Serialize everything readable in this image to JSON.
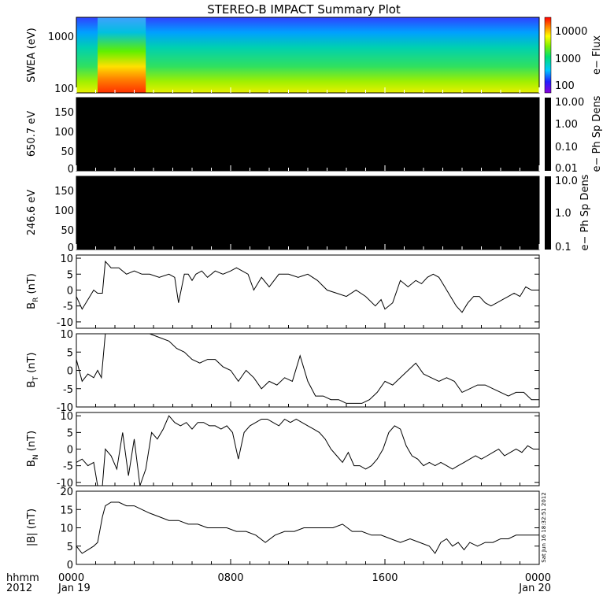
{
  "title": "STEREO-B IMPACT Summary Plot",
  "footer": {
    "label_line1": "hhmm",
    "label_line2": "2012",
    "x_ticks": [
      "0000",
      "0800",
      "1600",
      "0000"
    ],
    "x_dates": [
      "Jan 19",
      "",
      "",
      "Jan 20"
    ]
  },
  "timestamp": "Sat Jun 16 18:32:51 2012",
  "chart_data": [
    {
      "type": "heatmap",
      "ylabel": "SWEA (eV)",
      "yscale": "log",
      "ylim": [
        95,
        2000
      ],
      "y_ticks": [
        "100",
        "1000"
      ],
      "colorbar": {
        "label": "e− Flux",
        "ticks": [
          "100",
          "1000",
          "10000"
        ],
        "scale": "log",
        "range": [
          60,
          20000
        ]
      },
      "xlim_hours": [
        0,
        24
      ],
      "description_colors": "flux increases toward lower energies; strong enhancement (red/orange) below ~200 eV near 01:00-04:00",
      "enhancement_start_hour": 1.1,
      "enhancement_end_hour": 3.6
    },
    {
      "type": "heatmap",
      "ylabel": "650.7 eV",
      "ylim": [
        0,
        180
      ],
      "y_ticks": [
        "0",
        "50",
        "100",
        "150"
      ],
      "colorbar": {
        "label": "e− Ph Sp Dens",
        "ticks": [
          "0.01",
          "0.10",
          "1.00",
          "10.00"
        ],
        "scale": "log"
      },
      "fill": "#000000"
    },
    {
      "type": "heatmap",
      "ylabel": "246.6 eV",
      "ylim": [
        0,
        180
      ],
      "y_ticks": [
        "0",
        "50",
        "100",
        "150"
      ],
      "colorbar": {
        "label": "e− Ph Sp Dens",
        "ticks": [
          "0.1",
          "1.0",
          "10.0"
        ],
        "scale": "log"
      },
      "fill": "#000000"
    },
    {
      "type": "line",
      "ylabel_main": "B",
      "ylabel_sub": "R",
      "ylabel_unit": " (nT)",
      "ylim": [
        -12,
        11
      ],
      "y_ticks": [
        -10,
        -5,
        0,
        5,
        10
      ],
      "x_hours": [
        0,
        0.3,
        0.6,
        0.9,
        1.1,
        1.35,
        1.5,
        1.8,
        2.2,
        2.6,
        3.0,
        3.4,
        3.8,
        4.3,
        4.8,
        5.1,
        5.3,
        5.6,
        5.8,
        6.0,
        6.2,
        6.5,
        6.8,
        7.2,
        7.6,
        8.0,
        8.3,
        8.6,
        8.9,
        9.2,
        9.6,
        10.0,
        10.5,
        11.0,
        11.5,
        12.0,
        12.5,
        13.0,
        13.5,
        14.0,
        14.5,
        15.0,
        15.5,
        15.8,
        16.0,
        16.4,
        16.8,
        17.2,
        17.6,
        17.9,
        18.2,
        18.5,
        18.8,
        19.1,
        19.4,
        19.7,
        20.0,
        20.3,
        20.6,
        20.9,
        21.2,
        21.5,
        21.8,
        22.1,
        22.4,
        22.7,
        23.0,
        23.3,
        23.6,
        24.0
      ],
      "y": [
        -2,
        -6,
        -3,
        0,
        -1,
        -1,
        9,
        7,
        7,
        5,
        6,
        5,
        5,
        4,
        5,
        4,
        -4,
        5,
        5,
        3,
        5,
        6,
        4,
        6,
        5,
        6,
        7,
        6,
        5,
        0,
        4,
        1,
        5,
        5,
        4,
        5,
        3,
        0,
        -1,
        -2,
        0,
        -2,
        -5,
        -3,
        -6,
        -4,
        3,
        1,
        3,
        2,
        4,
        5,
        4,
        1,
        -2,
        -5,
        -7,
        -4,
        -2,
        -2,
        -4,
        -5,
        -4,
        -3,
        -2,
        -1,
        -2,
        1,
        0,
        0
      ]
    },
    {
      "type": "line",
      "ylabel_main": "B",
      "ylabel_sub": "T",
      "ylabel_unit": " (nT)",
      "ylim": [
        -10,
        10
      ],
      "y_ticks": [
        -10,
        -5,
        0,
        5,
        10
      ],
      "x_hours": [
        0,
        0.3,
        0.6,
        0.9,
        1.1,
        1.3,
        1.5,
        1.8,
        2.2,
        2.6,
        3.0,
        3.4,
        3.8,
        4.3,
        4.8,
        5.2,
        5.6,
        6.0,
        6.4,
        6.8,
        7.2,
        7.6,
        8.0,
        8.4,
        8.8,
        9.2,
        9.6,
        10.0,
        10.4,
        10.8,
        11.2,
        11.6,
        12.0,
        12.4,
        12.8,
        13.2,
        13.6,
        14.0,
        14.4,
        14.8,
        15.2,
        15.6,
        16.0,
        16.4,
        16.8,
        17.2,
        17.6,
        18.0,
        18.4,
        18.8,
        19.2,
        19.6,
        20.0,
        20.4,
        20.8,
        21.2,
        21.6,
        22.0,
        22.4,
        22.8,
        23.2,
        23.6,
        24.0
      ],
      "y": [
        3,
        -3,
        -1,
        -2,
        0,
        -2,
        11,
        10,
        11,
        11,
        10,
        10,
        11,
        9,
        8,
        6,
        5,
        3,
        2,
        3,
        3,
        1,
        0,
        -3,
        0,
        -2,
        -5,
        -3,
        -4,
        -2,
        -3,
        4,
        -3,
        -7,
        -7,
        -8,
        -8,
        -9,
        -9,
        -9,
        -8,
        -6,
        -3,
        -4,
        -2,
        0,
        2,
        -1,
        -2,
        -3,
        -2,
        -3,
        -6,
        -5,
        -4,
        -4,
        -5,
        -6,
        -7,
        -6,
        -6,
        -8,
        -8
      ]
    },
    {
      "type": "line",
      "ylabel_main": "B",
      "ylabel_sub": "N",
      "ylabel_unit": " (nT)",
      "ylim": [
        -11,
        11
      ],
      "y_ticks": [
        -10,
        -5,
        0,
        5,
        10
      ],
      "x_hours": [
        0,
        0.3,
        0.6,
        0.9,
        1.1,
        1.35,
        1.5,
        1.8,
        2.1,
        2.4,
        2.7,
        3.0,
        3.3,
        3.6,
        3.9,
        4.2,
        4.5,
        4.8,
        5.1,
        5.4,
        5.7,
        6.0,
        6.3,
        6.6,
        6.9,
        7.2,
        7.5,
        7.8,
        8.1,
        8.4,
        8.7,
        9.0,
        9.3,
        9.6,
        9.9,
        10.2,
        10.5,
        10.8,
        11.1,
        11.4,
        11.7,
        12.0,
        12.3,
        12.6,
        12.9,
        13.2,
        13.5,
        13.8,
        14.1,
        14.4,
        14.7,
        15.0,
        15.3,
        15.6,
        15.9,
        16.2,
        16.5,
        16.8,
        17.1,
        17.4,
        17.7,
        18.0,
        18.3,
        18.6,
        18.9,
        19.2,
        19.5,
        19.8,
        20.1,
        20.4,
        20.7,
        21.0,
        21.3,
        21.6,
        21.9,
        22.2,
        22.5,
        22.8,
        23.1,
        23.4,
        23.7,
        24.0
      ],
      "y": [
        -4,
        -3,
        -5,
        -4,
        -12,
        -12,
        0,
        -2,
        -6,
        5,
        -8,
        3,
        -12,
        -6,
        5,
        3,
        6,
        10,
        8,
        7,
        8,
        6,
        8,
        8,
        7,
        7,
        6,
        7,
        5,
        -3,
        5,
        7,
        8,
        9,
        9,
        8,
        7,
        9,
        8,
        9,
        8,
        7,
        6,
        5,
        3,
        0,
        -2,
        -4,
        -1,
        -5,
        -5,
        -6,
        -5,
        -3,
        0,
        5,
        7,
        6,
        1,
        -2,
        -3,
        -5,
        -4,
        -5,
        -4,
        -5,
        -6,
        -5,
        -4,
        -3,
        -2,
        -3,
        -2,
        -1,
        0,
        -2,
        -1,
        0,
        -1,
        1,
        0,
        0
      ]
    },
    {
      "type": "line",
      "ylabel": "|B| (nT)",
      "ylim": [
        0,
        20
      ],
      "y_ticks": [
        0,
        5,
        10,
        15,
        20
      ],
      "x_hours": [
        0,
        0.3,
        0.6,
        0.9,
        1.1,
        1.35,
        1.5,
        1.8,
        2.2,
        2.6,
        3.0,
        3.4,
        3.8,
        4.3,
        4.8,
        5.3,
        5.8,
        6.3,
        6.8,
        7.3,
        7.8,
        8.3,
        8.8,
        9.3,
        9.8,
        10.3,
        10.8,
        11.3,
        11.8,
        12.3,
        12.8,
        13.3,
        13.8,
        14.3,
        14.8,
        15.3,
        15.8,
        16.3,
        16.8,
        17.3,
        17.8,
        18.3,
        18.6,
        18.9,
        19.2,
        19.5,
        19.8,
        20.1,
        20.4,
        20.8,
        21.2,
        21.6,
        22.0,
        22.4,
        22.8,
        23.2,
        23.6,
        24.0
      ],
      "y": [
        5,
        3,
        4,
        5,
        6,
        13,
        16,
        17,
        17,
        16,
        16,
        15,
        14,
        13,
        12,
        12,
        11,
        11,
        10,
        10,
        10,
        9,
        9,
        8,
        6,
        8,
        9,
        9,
        10,
        10,
        10,
        10,
        11,
        9,
        9,
        8,
        8,
        7,
        6,
        7,
        6,
        5,
        3,
        6,
        7,
        5,
        6,
        4,
        6,
        5,
        6,
        6,
        7,
        7,
        8,
        8,
        8,
        8
      ]
    }
  ]
}
